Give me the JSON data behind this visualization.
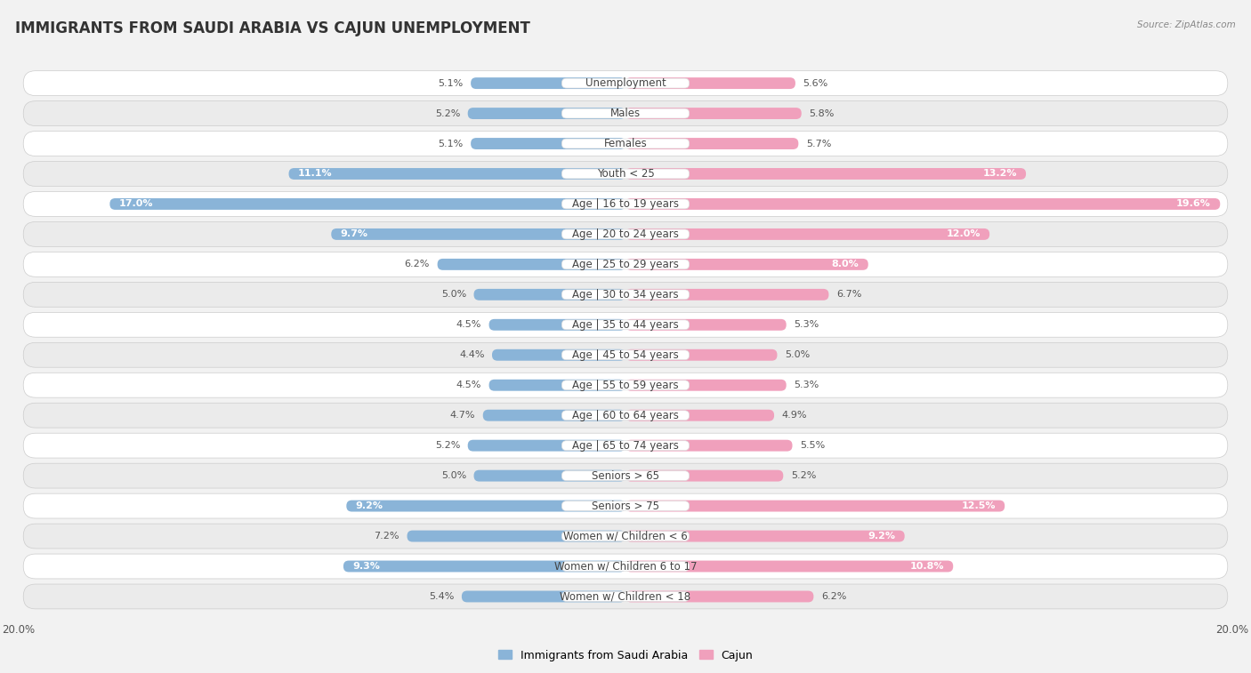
{
  "title": "IMMIGRANTS FROM SAUDI ARABIA VS CAJUN UNEMPLOYMENT",
  "source": "Source: ZipAtlas.com",
  "categories": [
    "Unemployment",
    "Males",
    "Females",
    "Youth < 25",
    "Age | 16 to 19 years",
    "Age | 20 to 24 years",
    "Age | 25 to 29 years",
    "Age | 30 to 34 years",
    "Age | 35 to 44 years",
    "Age | 45 to 54 years",
    "Age | 55 to 59 years",
    "Age | 60 to 64 years",
    "Age | 65 to 74 years",
    "Seniors > 65",
    "Seniors > 75",
    "Women w/ Children < 6",
    "Women w/ Children 6 to 17",
    "Women w/ Children < 18"
  ],
  "saudi_values": [
    5.1,
    5.2,
    5.1,
    11.1,
    17.0,
    9.7,
    6.2,
    5.0,
    4.5,
    4.4,
    4.5,
    4.7,
    5.2,
    5.0,
    9.2,
    7.2,
    9.3,
    5.4
  ],
  "cajun_values": [
    5.6,
    5.8,
    5.7,
    13.2,
    19.6,
    12.0,
    8.0,
    6.7,
    5.3,
    5.0,
    5.3,
    4.9,
    5.5,
    5.2,
    12.5,
    9.2,
    10.8,
    6.2
  ],
  "saudi_color": "#8ab4d8",
  "cajun_color": "#f0a0bc",
  "saudi_color_dark": "#5a8fc0",
  "cajun_color_dark": "#e06090",
  "saudi_label": "Immigrants from Saudi Arabia",
  "cajun_label": "Cajun",
  "axis_limit": 20.0,
  "background_color": "#f2f2f2",
  "row_color_odd": "#ffffff",
  "row_color_even": "#ebebeb",
  "title_fontsize": 12,
  "label_fontsize": 8.5,
  "value_fontsize": 8,
  "legend_fontsize": 9,
  "white_text_threshold": 8.0
}
